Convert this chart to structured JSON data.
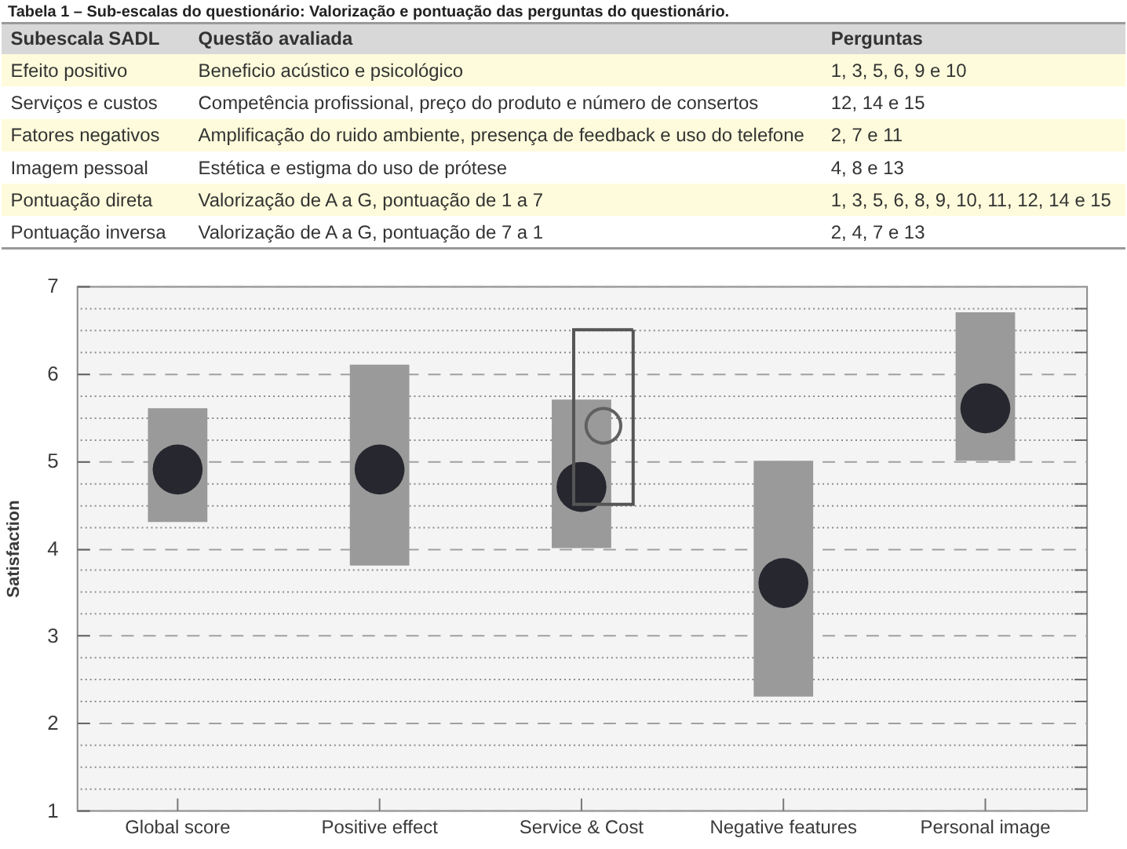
{
  "chart_data": [
    {
      "type": "other",
      "title": "Tabela 1 – Sub-escalas do questionário: Valorização e pontuação das perguntas do questionário.",
      "categories": [
        "Subescala SADL",
        "Questão avaliada",
        "Perguntas"
      ],
      "annotations": [
        "Efeito positivo",
        "Beneficio acústico e psicológico",
        "1, 3, 5, 6, 9 e 10",
        "Serviços e custos",
        "Competência profissional, preço do produto e número de consertos",
        "12, 14 e 15",
        "Fatores negativos",
        "Amplificação do ruido ambiente, presença de feedback e uso do telefone",
        "2, 7 e 11",
        "Imagem pessoal",
        "Estética e estigma do uso de prótese",
        "4, 8 e 13",
        "Pontuação direta",
        "Valorização de A a G, pontuação de 1 a 7",
        "1, 3, 5, 6, 8, 9, 10, 11, 12, 14 e 15",
        "Pontuação inversa",
        "Valorização de A a G, pontuação de 7 a 1",
        "2, 4, 7 e 13"
      ],
      "colors": [
        "#d8d8d8",
        "#fdfbdb",
        "#ffffff",
        "#fdfbdb",
        "#ffffff",
        "#fdfbdb",
        "#ffffff"
      ]
    },
    {
      "type": "bar",
      "categories": [
        "Global score",
        "Positive effect",
        "Service & Cost",
        "Negative features",
        "Personal image"
      ],
      "ylabel": "Satisfaction",
      "ylim": [
        1,
        7
      ],
      "yticks": [
        1,
        {
          "value": 1.25,
          "label": null
        },
        {
          "value": 1.5,
          "label": null
        },
        {
          "value": 1.75,
          "label": null
        },
        2,
        {
          "value": 2.25,
          "label": null
        },
        {
          "value": 2.5,
          "label": null
        },
        {
          "value": 2.75,
          "label": null
        },
        3,
        {
          "value": 3.25,
          "label": null
        },
        {
          "value": 3.5,
          "label": null
        },
        {
          "value": 3.75,
          "label": null
        },
        4,
        {
          "value": 4.25,
          "label": null
        },
        {
          "value": 4.5,
          "label": null
        },
        {
          "value": 4.75,
          "label": null
        },
        5,
        {
          "value": 5.25,
          "label": null
        },
        {
          "value": 5.5,
          "label": null
        },
        {
          "value": 5.75,
          "label": null
        },
        6,
        {
          "value": 6.25,
          "label": null
        },
        {
          "value": 6.5,
          "label": null
        },
        {
          "value": 6.75,
          "label": null
        },
        7
      ],
      "grid": "y",
      "series": [
        {
          "type": "bar",
          "color": "#9a9a9a",
          "base": [
            4.3,
            3.8,
            4.0,
            2.3,
            5.0
          ],
          "values": [
            1.3,
            2.3,
            1.7,
            2.7,
            1.7
          ]
        },
        {
          "type": "scatter",
          "color": "#27272f",
          "marker": "circle",
          "x": [
            "Global score",
            "Positive effect",
            "Service & Cost",
            "Negative features",
            "Personal image"
          ],
          "values": [
            4.9,
            4.9,
            4.7,
            3.6,
            5.6
          ]
        },
        {
          "type": "bar",
          "color": "#555555",
          "line_style": "solid",
          "base": [
            null,
            null,
            4.5,
            null,
            null
          ],
          "values": [
            null,
            null,
            2.0,
            null,
            null
          ]
        },
        {
          "type": "scatter",
          "color": "#606060",
          "marker": "circle",
          "line_style": "solid",
          "x": [
            "Global score",
            "Positive effect",
            "Service & Cost",
            "Negative features",
            "Personal image"
          ],
          "values": [
            null,
            null,
            5.4,
            null,
            null
          ]
        }
      ]
    }
  ]
}
